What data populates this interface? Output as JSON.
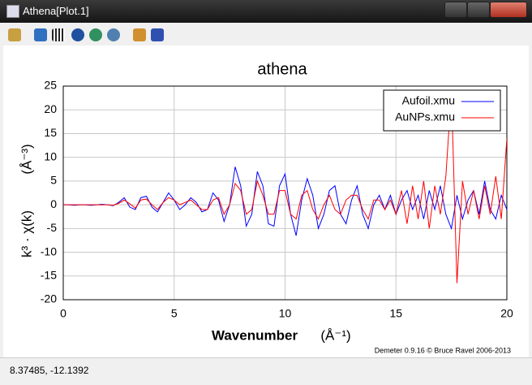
{
  "window": {
    "title": "Athena[Plot.1]",
    "status": "8.37485, -12.1392"
  },
  "chart_data": {
    "type": "line",
    "title": "athena",
    "ylabel": "k³ · χ(k)",
    "ylabel_unit": "(Å⁻³)",
    "xlabel": "Wavenumber",
    "xlabel_unit": "(Å⁻¹)",
    "credit": "Demeter 0.9.16 © Bruce Ravel 2006-2013",
    "xlim": [
      0,
      20
    ],
    "ylim": [
      -20,
      25
    ],
    "xticks": [
      0,
      5,
      10,
      15,
      20
    ],
    "yticks": [
      -20,
      -15,
      -10,
      -5,
      0,
      5,
      10,
      15,
      20,
      25
    ],
    "grid": true,
    "legend": "upper right",
    "x": [
      0,
      0.25,
      0.5,
      0.75,
      1,
      1.25,
      1.5,
      1.75,
      2,
      2.25,
      2.5,
      2.75,
      3,
      3.25,
      3.5,
      3.75,
      4,
      4.25,
      4.5,
      4.75,
      5,
      5.25,
      5.5,
      5.75,
      6,
      6.25,
      6.5,
      6.75,
      7,
      7.25,
      7.5,
      7.75,
      8,
      8.25,
      8.5,
      8.75,
      9,
      9.25,
      9.5,
      9.75,
      10,
      10.25,
      10.5,
      10.75,
      11,
      11.25,
      11.5,
      11.75,
      12,
      12.25,
      12.5,
      12.75,
      13,
      13.25,
      13.5,
      13.75,
      14,
      14.25,
      14.5,
      14.75,
      15,
      15.25,
      15.5,
      15.75,
      16,
      16.25,
      16.5,
      16.75,
      17,
      17.25,
      17.5,
      17.75,
      18,
      18.25,
      18.5,
      18.75,
      19,
      19.25,
      19.5,
      19.75,
      20
    ],
    "series": [
      {
        "name": "Aufoil.xmu",
        "color": "#0000ff",
        "values": [
          0,
          0,
          -0.1,
          0,
          0,
          -0.1,
          0,
          0.1,
          0,
          -0.2,
          0.5,
          1.5,
          -0.5,
          -1,
          1.5,
          1.8,
          -0.5,
          -1.5,
          0.5,
          2.5,
          1,
          -1,
          0,
          1.5,
          0.5,
          -1.5,
          -1,
          2.5,
          1,
          -3.5,
          0,
          8,
          4,
          -4.5,
          -2,
          7,
          4,
          -4,
          -4.5,
          4,
          6.5,
          -2,
          -6.5,
          1,
          5.5,
          2,
          -5,
          -2,
          3,
          4,
          -2,
          -4,
          1,
          4,
          -2,
          -5,
          0,
          2,
          -1,
          2,
          -2,
          1,
          3,
          -1,
          2,
          -3,
          3,
          -1,
          4,
          -2,
          -5,
          2,
          -3,
          1,
          3,
          -2,
          5,
          -1,
          -3,
          2,
          -1
        ]
      },
      {
        "name": "AuNPs.xmu",
        "color": "#ff0000",
        "values": [
          0,
          0,
          0,
          0,
          0,
          0,
          0,
          0,
          0,
          -0.1,
          0.3,
          1,
          0.2,
          -0.7,
          1,
          1.2,
          0,
          -1,
          0.5,
          1.5,
          1,
          0,
          0.5,
          1,
          0,
          -1,
          -1,
          1,
          1.5,
          -2,
          0,
          4.5,
          3,
          -2,
          -1,
          5,
          2,
          -2,
          -2,
          3,
          3,
          -2,
          -3,
          2,
          3,
          -1,
          -3,
          0,
          2,
          -1,
          -2,
          1,
          2,
          2,
          -1,
          -3,
          1,
          1,
          -1,
          1,
          -2,
          3,
          -4,
          4,
          -3,
          5,
          -5,
          4,
          -2,
          6,
          24,
          -16.5,
          5,
          -2,
          3,
          -3,
          4,
          -2,
          6,
          -3,
          14
        ]
      }
    ]
  }
}
